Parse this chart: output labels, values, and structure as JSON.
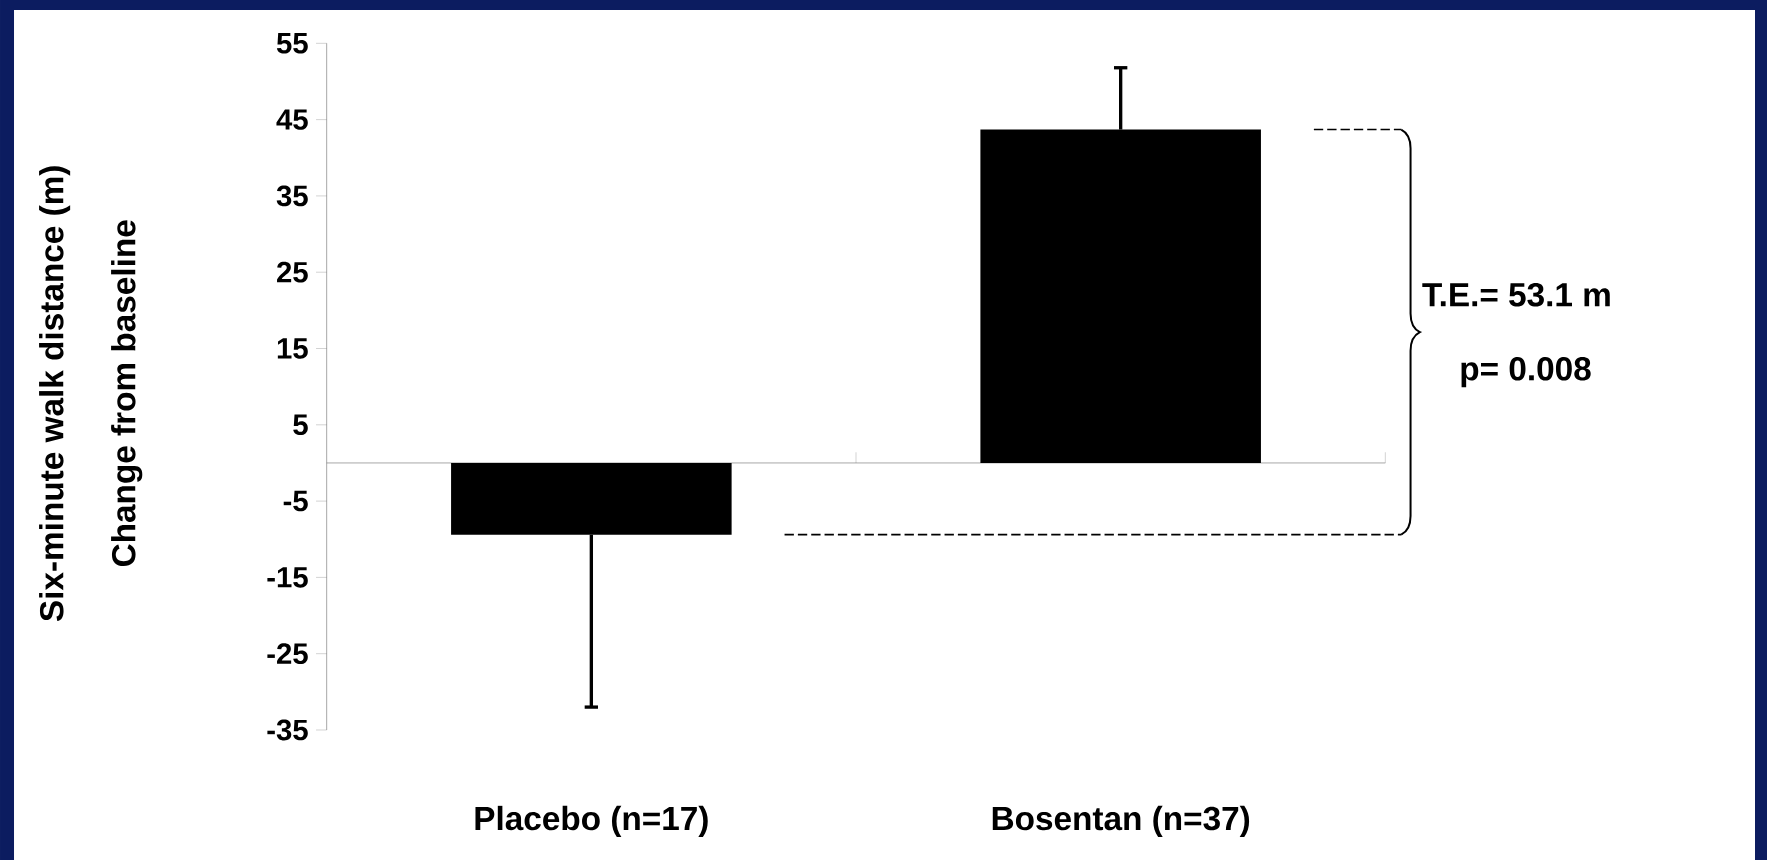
{
  "chart_data": {
    "type": "bar",
    "ylabel": "Six-minute walk distance (m) Change from baseline",
    "categories": [
      "Placebo (n=17)",
      "Bosentan (n=37)"
    ],
    "values": [
      -9.4,
      43.7
    ],
    "errors": [
      [
        -32,
        -9.4
      ],
      [
        43.7,
        51.8
      ]
    ],
    "color": "#000000",
    "ylim": [
      -35,
      55
    ],
    "yticks": [
      55,
      45,
      35,
      25,
      15,
      5,
      -5,
      -15,
      -25,
      -35
    ],
    "ref_lines": [
      {
        "axis": "y",
        "value": -9.4,
        "line_style": "dashed"
      }
    ],
    "annotations": [
      "T.E.= 53.1 m",
      "p= 0.008"
    ],
    "grid": false
  }
}
